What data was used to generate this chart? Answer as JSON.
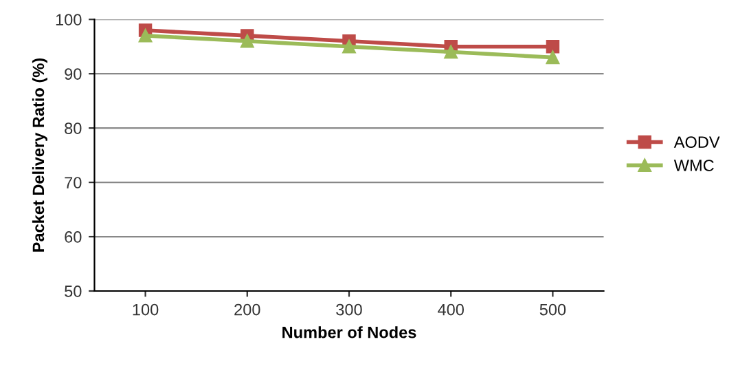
{
  "chart_data": {
    "type": "line",
    "xlabel": "Number of Nodes",
    "ylabel": "Packet Delivery Ratio (%)",
    "categories": [
      "100",
      "200",
      "300",
      "400",
      "500"
    ],
    "series": [
      {
        "name": "AODV",
        "color": "#be4b48",
        "marker": "square",
        "values": [
          98,
          97,
          96,
          95,
          95
        ]
      },
      {
        "name": "WMC",
        "color": "#9bbb59",
        "marker": "triangle",
        "values": [
          97,
          96,
          95,
          94,
          93
        ]
      }
    ],
    "ylim": [
      50,
      100
    ],
    "yticks": [
      50,
      60,
      70,
      80,
      90,
      100
    ],
    "grid": "y",
    "legend": "right",
    "line_style": "solid"
  }
}
